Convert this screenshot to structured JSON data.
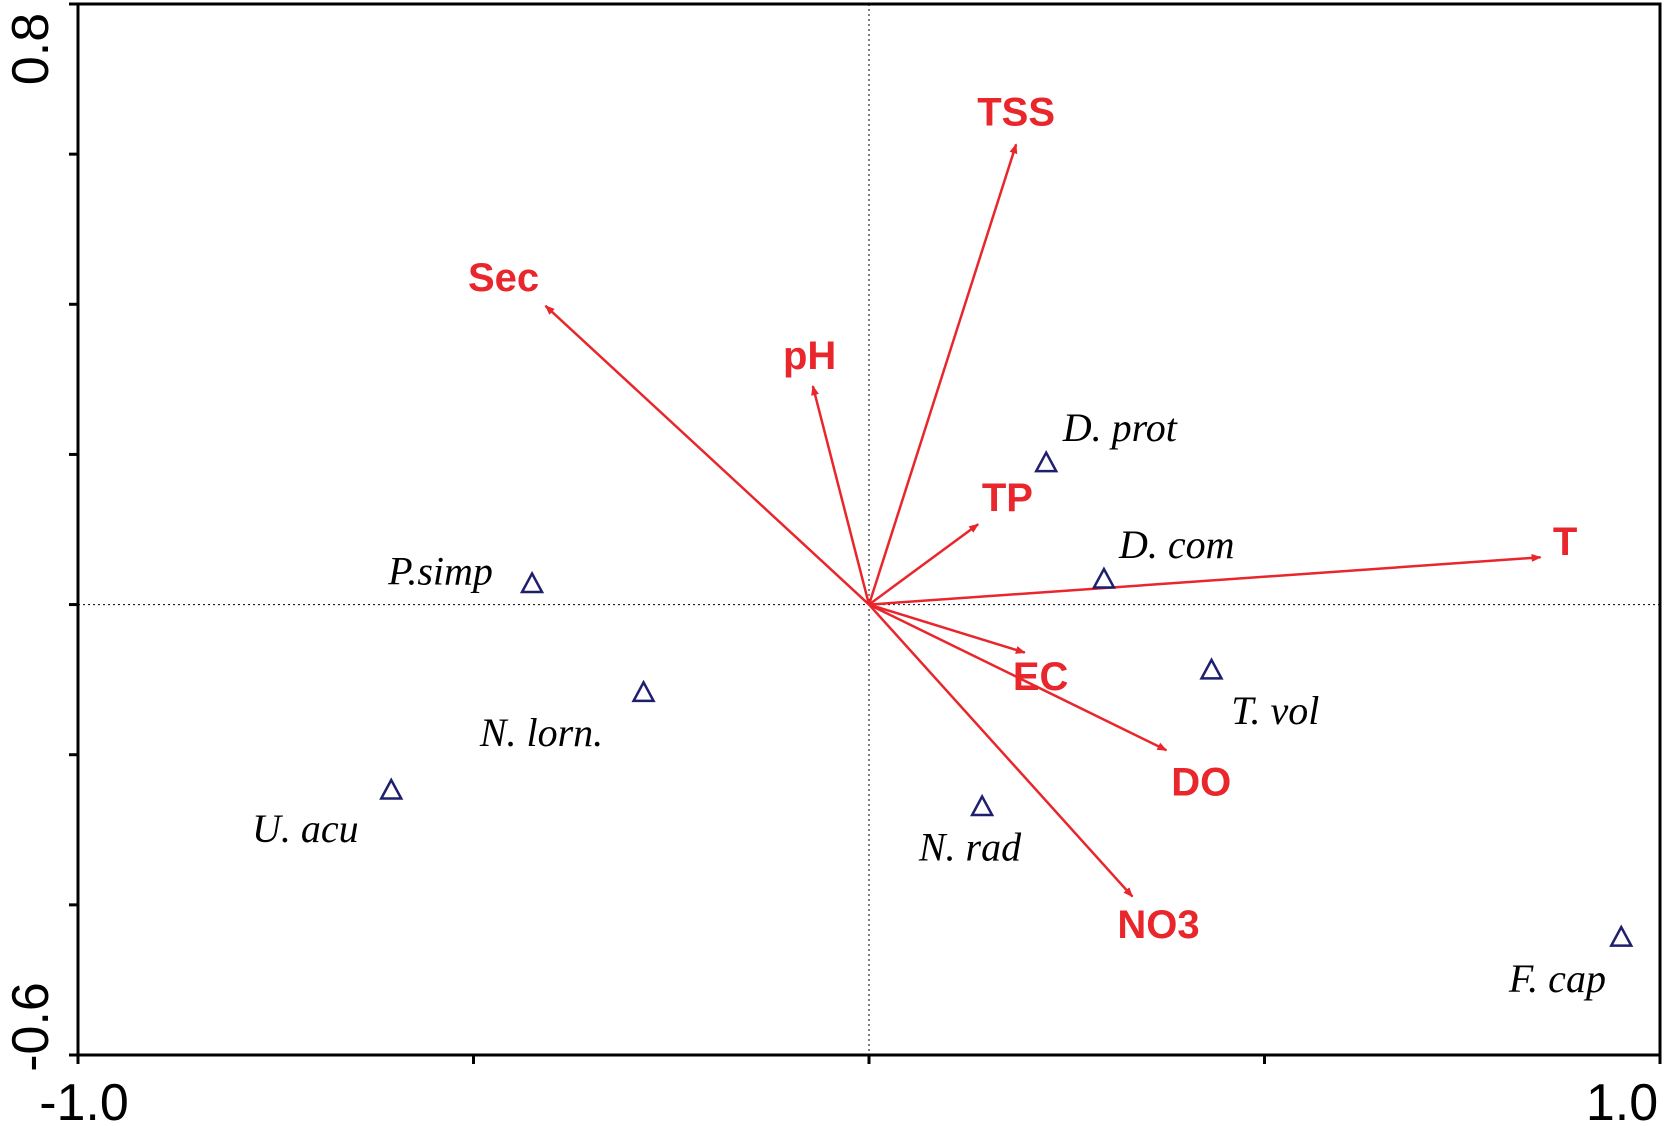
{
  "chart_data": {
    "type": "scatter",
    "subtype": "ordination biplot",
    "xlim": [
      -1.0,
      1.0
    ],
    "ylim": [
      -0.6,
      0.8
    ],
    "x_tick_labels": [
      "-1.0",
      "1.0"
    ],
    "y_tick_labels": [
      "-0.6",
      "0.8"
    ],
    "x_minor_ticks": [
      -1.0,
      -0.5,
      0.0,
      0.5,
      1.0
    ],
    "y_minor_ticks": [
      -0.6,
      -0.4,
      -0.2,
      0.0,
      0.2,
      0.4,
      0.6,
      0.8
    ],
    "zero_lines": true,
    "env_vectors": [
      {
        "name": "TSS",
        "x": 0.186,
        "y": 0.613,
        "label_x": 0.186,
        "label_y": 0.652
      },
      {
        "name": "Sec",
        "x": -0.409,
        "y": 0.398,
        "label_x": -0.462,
        "label_y": 0.432
      },
      {
        "name": "pH",
        "x": -0.071,
        "y": 0.291,
        "label_x": -0.075,
        "label_y": 0.328
      },
      {
        "name": "TP",
        "x": 0.138,
        "y": 0.107,
        "label_x": 0.175,
        "label_y": 0.139
      },
      {
        "name": "T",
        "x": 0.849,
        "y": 0.063,
        "label_x": 0.88,
        "label_y": 0.08
      },
      {
        "name": "EC",
        "x": 0.197,
        "y": -0.064,
        "label_x": 0.217,
        "label_y": -0.1
      },
      {
        "name": "DO",
        "x": 0.376,
        "y": -0.194,
        "label_x": 0.42,
        "label_y": -0.24
      },
      {
        "name": "NO3",
        "x": 0.333,
        "y": -0.389,
        "label_x": 0.366,
        "label_y": -0.43
      }
    ],
    "species": [
      {
        "name": "D. prot",
        "x": 0.224,
        "y": 0.189,
        "label_x": 0.245,
        "label_y": 0.23
      },
      {
        "name": "D. com",
        "x": 0.297,
        "y": 0.034,
        "label_x": 0.316,
        "label_y": 0.074
      },
      {
        "name": "P.simp",
        "x": -0.426,
        "y": 0.028,
        "label_x": -0.608,
        "label_y": 0.039
      },
      {
        "name": "N. lorn.",
        "x": -0.285,
        "y": -0.117,
        "label_x": -0.492,
        "label_y": -0.176
      },
      {
        "name": "T. vol",
        "x": 0.433,
        "y": -0.087,
        "label_x": 0.458,
        "label_y": -0.147
      },
      {
        "name": "U. acu",
        "x": -0.604,
        "y": -0.247,
        "label_x": -0.78,
        "label_y": -0.304
      },
      {
        "name": "N. rad",
        "x": 0.143,
        "y": -0.269,
        "label_x": 0.063,
        "label_y": -0.329
      },
      {
        "name": "F. cap",
        "x": 0.951,
        "y": -0.443,
        "label_x": 0.809,
        "label_y": -0.504
      }
    ],
    "colors": {
      "env": "#e8262b",
      "species": "#1f1f6e",
      "axis": "#000000"
    }
  }
}
